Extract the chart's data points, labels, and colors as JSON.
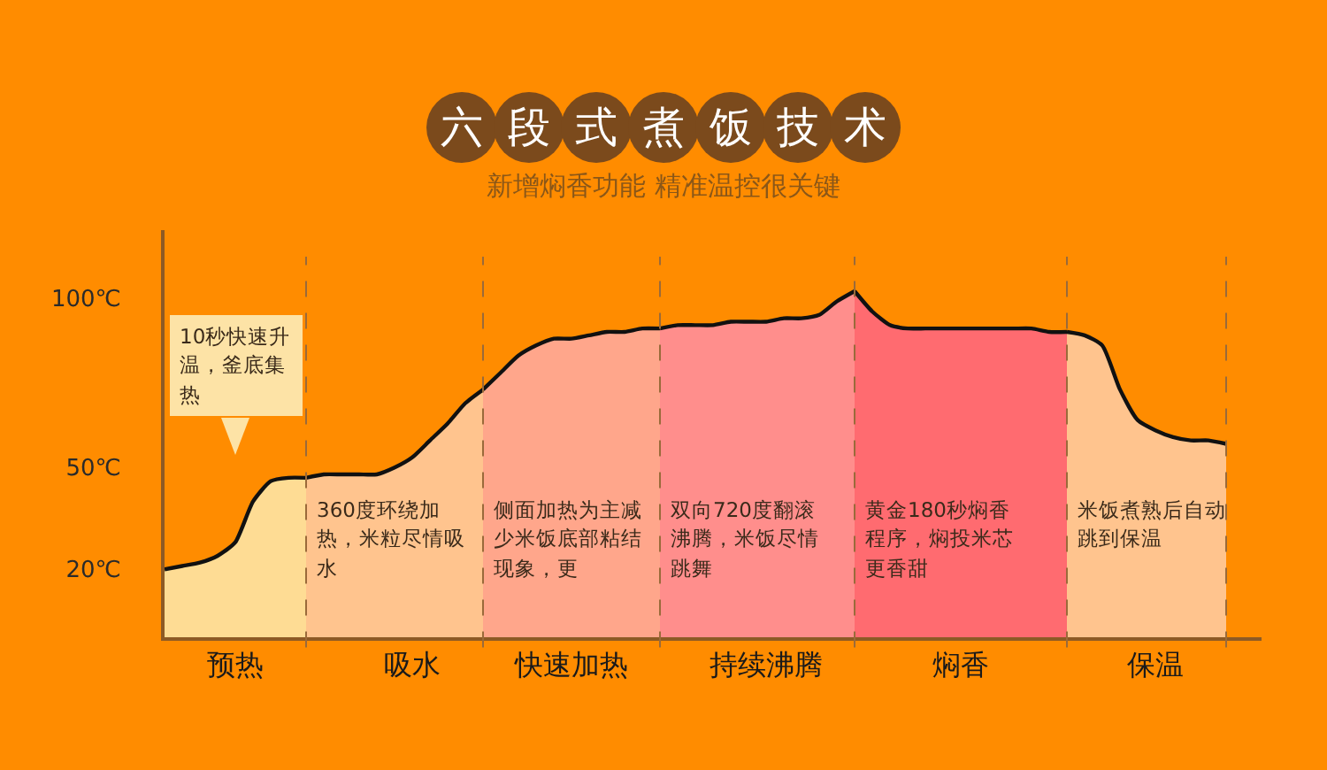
{
  "chart_data": {
    "type": "area",
    "title": "六段式煮饭技术",
    "subtitle": "新增焖香功能 精准温控很关键",
    "categories": [
      null,
      null,
      null,
      null,
      "预热",
      null,
      null,
      null,
      null,
      null,
      null,
      null,
      null,
      null,
      "吸水",
      null,
      null,
      null,
      null,
      null,
      null,
      null,
      null,
      "快速加热",
      null,
      null,
      null,
      null,
      null,
      null,
      null,
      null,
      null,
      null,
      "持续沸腾",
      null,
      null,
      null,
      null,
      null,
      null,
      null,
      null,
      null,
      null,
      "焖香",
      null,
      null,
      null,
      null,
      null,
      null,
      null,
      null,
      null,
      null,
      "保温",
      null,
      null,
      null,
      null
    ],
    "ylim": [
      0,
      120
    ],
    "yticks": [
      {
        "value": 20,
        "label": "20℃"
      },
      {
        "value": 50,
        "label": "50℃"
      },
      {
        "value": 100,
        "label": "100℃"
      }
    ],
    "series": [
      {
        "color": "#fedc94",
        "values": [
          20,
          21,
          22,
          24,
          28,
          40,
          46,
          47,
          47,
          null,
          null,
          null,
          null,
          null,
          null,
          null,
          null,
          null,
          null,
          null,
          null,
          null,
          null,
          null,
          null,
          null,
          null,
          null,
          null,
          null,
          null,
          null,
          null,
          null,
          null,
          null,
          null,
          null,
          null,
          null,
          null,
          null,
          null,
          null,
          null,
          null,
          null,
          null,
          null,
          null,
          null,
          null,
          null,
          null,
          null,
          null,
          null,
          null,
          null,
          null,
          null
        ]
      },
      {
        "color": "#ffc48e",
        "values": [
          null,
          null,
          null,
          null,
          null,
          null,
          null,
          null,
          47,
          48,
          48,
          48,
          48,
          50,
          53,
          58,
          63,
          69,
          73,
          null,
          null,
          null,
          null,
          null,
          null,
          null,
          null,
          null,
          null,
          null,
          null,
          null,
          null,
          null,
          null,
          null,
          null,
          null,
          null,
          null,
          null,
          null,
          null,
          null,
          null,
          null,
          null,
          null,
          null,
          null,
          null,
          null,
          null,
          null,
          null,
          null,
          null,
          null,
          null,
          null,
          null
        ]
      },
      {
        "color": "#ffa68b",
        "values": [
          null,
          null,
          null,
          null,
          null,
          null,
          null,
          null,
          null,
          null,
          null,
          null,
          null,
          null,
          null,
          null,
          null,
          null,
          73,
          78,
          83,
          86,
          88,
          88,
          89,
          90,
          90,
          91,
          91,
          null,
          null,
          null,
          null,
          null,
          null,
          null,
          null,
          null,
          null,
          null,
          null,
          null,
          null,
          null,
          null,
          null,
          null,
          null,
          null,
          null,
          null,
          null,
          null,
          null,
          null,
          null,
          null,
          null,
          null,
          null,
          null
        ]
      },
      {
        "color": "#ff8e8c",
        "values": [
          null,
          null,
          null,
          null,
          null,
          null,
          null,
          null,
          null,
          null,
          null,
          null,
          null,
          null,
          null,
          null,
          null,
          null,
          null,
          null,
          null,
          null,
          null,
          null,
          null,
          null,
          null,
          null,
          91,
          92,
          92,
          92,
          93,
          93,
          93,
          94,
          94,
          95,
          99,
          102,
          null,
          null,
          null,
          null,
          null,
          null,
          null,
          null,
          null,
          null,
          null,
          null,
          null,
          null,
          null,
          null,
          null,
          null,
          null,
          null,
          null
        ]
      },
      {
        "color": "#ff6b70",
        "values": [
          null,
          null,
          null,
          null,
          null,
          null,
          null,
          null,
          null,
          null,
          null,
          null,
          null,
          null,
          null,
          null,
          null,
          null,
          null,
          null,
          null,
          null,
          null,
          null,
          null,
          null,
          null,
          null,
          null,
          null,
          null,
          null,
          null,
          null,
          null,
          null,
          null,
          null,
          null,
          102,
          96,
          92,
          91,
          91,
          91,
          91,
          91,
          91,
          91,
          91,
          90,
          90,
          null,
          null,
          null,
          null,
          null,
          null,
          null,
          null,
          null
        ]
      },
      {
        "color": "#ffc48e",
        "values": [
          null,
          null,
          null,
          null,
          null,
          null,
          null,
          null,
          null,
          null,
          null,
          null,
          null,
          null,
          null,
          null,
          null,
          null,
          null,
          null,
          null,
          null,
          null,
          null,
          null,
          null,
          null,
          null,
          null,
          null,
          null,
          null,
          null,
          null,
          null,
          null,
          null,
          null,
          null,
          null,
          null,
          null,
          null,
          null,
          null,
          null,
          null,
          null,
          null,
          null,
          null,
          90,
          89,
          86,
          73,
          64,
          61,
          59,
          58,
          58,
          57
        ]
      }
    ],
    "annotations": [
      "10秒快速升温，釜底集热",
      "360度环绕加热，米粒尽情吸水",
      "侧面加热为主减少米饭底部粘结现象，更",
      "双向720度翻滚沸腾，米饭尽情跳舞",
      "黄金180秒焖香程序，焖投米芯更香甜",
      "米饭煮熟后自动跳到保温"
    ]
  }
}
